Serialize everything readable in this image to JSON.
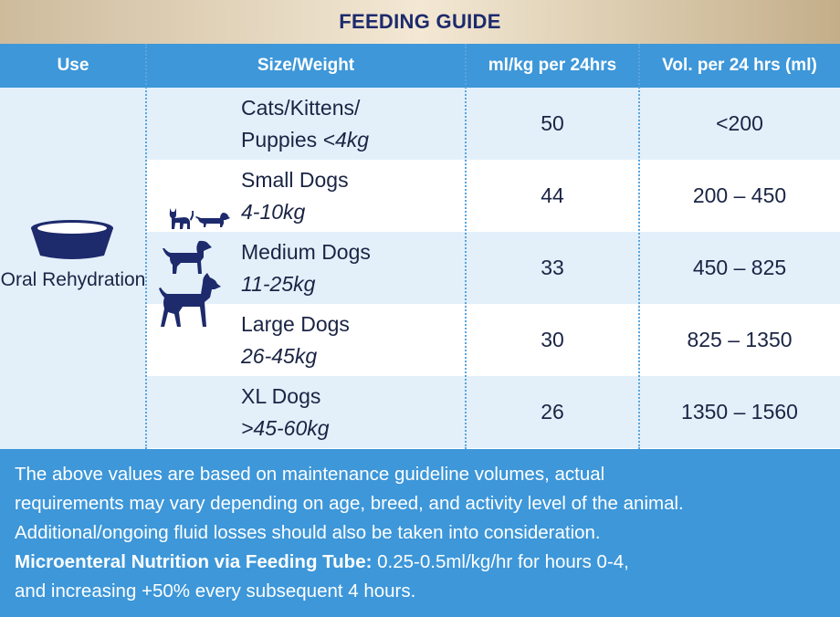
{
  "title": "FEEDING GUIDE",
  "headers": {
    "use": "Use",
    "size": "Size/Weight",
    "mlkg": "ml/kg per 24hrs",
    "vol": "Vol. per 24 hrs (ml)"
  },
  "use_label": "Oral Rehydration",
  "icons": [
    "bowl-icon",
    "cat-icon",
    "small-dog-icon",
    "medium-dog-icon",
    "large-dog-icon"
  ],
  "rows": [
    {
      "name_line1": "Cats/Kittens/",
      "name_line2": "Puppies ",
      "weight": "<4kg",
      "mlkg": "50",
      "vol": "<200"
    },
    {
      "name_line1": "Small Dogs",
      "name_line2": "",
      "weight": "4-10kg",
      "mlkg": "44",
      "vol": "200 – 450"
    },
    {
      "name_line1": "Medium Dogs",
      "name_line2": "",
      "weight": "11-25kg",
      "mlkg": "33",
      "vol": "450 – 825"
    },
    {
      "name_line1": "Large Dogs",
      "name_line2": "",
      "weight": "26-45kg",
      "mlkg": "30",
      "vol": "825 – 1350"
    },
    {
      "name_line1": "XL Dogs",
      "name_line2": "",
      "weight": ">45-60kg",
      "mlkg": "26",
      "vol": "1350 – 1560"
    }
  ],
  "footer": {
    "line1": "The above values are based on maintenance guideline volumes, actual",
    "line2": "requirements may vary depending on age, breed, and activity level of the animal.",
    "line3": "Additional/ongoing fluid losses should also be taken into consideration.",
    "bold_label": "Microenteral Nutrition via Feeding Tube:",
    "line4_rest": " 0.25-0.5ml/kg/hr for hours 0-4,",
    "line5": "and increasing +50% every subsequent 4 hours."
  },
  "colors": {
    "header_blue": "#3d97d9",
    "light_band": "#e3f0fa",
    "navy": "#1d2a6c",
    "gold": "#cdbb9c"
  }
}
